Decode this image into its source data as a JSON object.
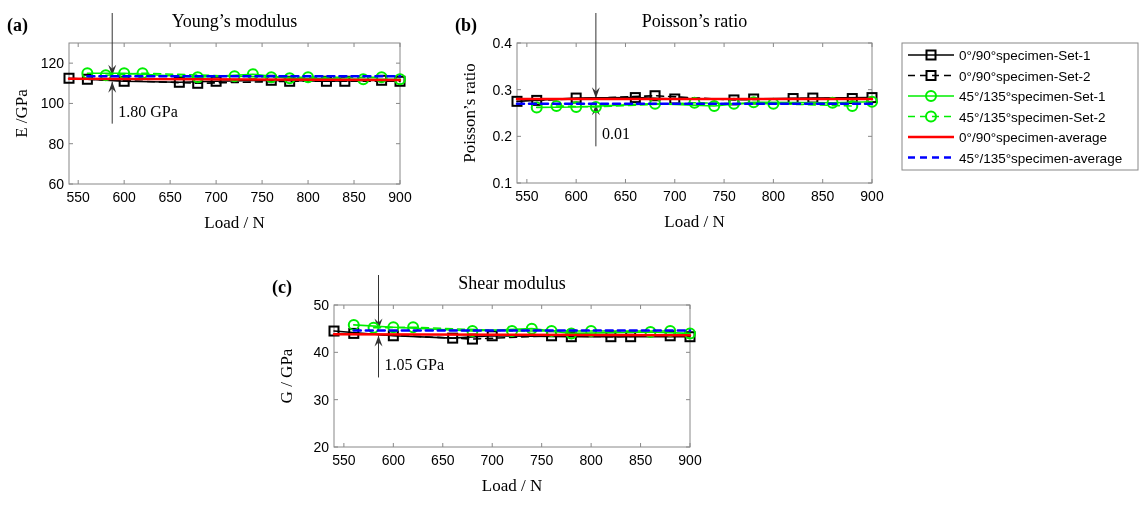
{
  "chart_data": [
    {
      "type": "line",
      "title": "Young’s modulus",
      "xlabel": "Load / N",
      "ylabel": "E /GPa",
      "xlim": [
        540,
        900
      ],
      "ylim": [
        60,
        130
      ],
      "xticks": [
        550,
        600,
        650,
        700,
        750,
        800,
        850,
        900
      ],
      "yticks": [
        60,
        80,
        100,
        120
      ],
      "grid": false,
      "legend": false,
      "annotations": [
        "(a)",
        {
          "text": "1.80 GPa",
          "x": 587,
          "y": 112.3
        }
      ],
      "series": [
        {
          "color": "#000000",
          "marker": "square",
          "line_style": "solid",
          "x": [
            540,
            600,
            660,
            700,
            760,
            820,
            880
          ],
          "values": [
            112.5,
            111,
            110.5,
            111,
            111.5,
            111,
            111.5
          ]
        },
        {
          "color": "#000000",
          "marker": "square",
          "line_style": "dashed",
          "x": [
            560,
            680,
            780,
            840,
            900
          ],
          "values": [
            112,
            110,
            111,
            111,
            111
          ]
        },
        {
          "color": "#00ee00",
          "marker": "circle",
          "line_style": "solid",
          "x": [
            560,
            600,
            680,
            740,
            780,
            860,
            900
          ],
          "values": [
            115,
            115,
            113,
            114.5,
            112.5,
            112,
            112
          ]
        },
        {
          "color": "#00ee00",
          "marker": "circle",
          "line_style": "dashed",
          "x": [
            580,
            620,
            720,
            760,
            800,
            880
          ],
          "values": [
            114,
            115,
            113.5,
            113,
            113,
            113
          ]
        },
        {
          "color": "#ff0000",
          "marker": "none",
          "line_style": "solid",
          "x": [
            540,
            900
          ],
          "values": [
            112.2,
            111.6
          ]
        },
        {
          "color": "#0000ff",
          "marker": "none",
          "line_style": "dashed",
          "x": [
            560,
            900
          ],
          "values": [
            113.5,
            113.5
          ]
        }
      ]
    },
    {
      "type": "line",
      "title": "Poisson’s ratio",
      "xlabel": "Load / N",
      "ylabel": "Poisson’s ratio",
      "xlim": [
        540,
        900
      ],
      "ylim": [
        0.1,
        0.4
      ],
      "xticks": [
        550,
        600,
        650,
        700,
        750,
        800,
        850,
        900
      ],
      "yticks": [
        0.1,
        0.2,
        0.3,
        0.4
      ],
      "grid": false,
      "legend": "right",
      "annotations": [
        "(b)",
        {
          "text": "0.01",
          "x": 620,
          "y": 0.275
        }
      ],
      "series": [
        {
          "name": "0°/90°specimen-Set-1",
          "color": "#000000",
          "marker": "square",
          "line_style": "solid",
          "x": [
            540,
            600,
            660,
            700,
            780,
            840,
            900
          ],
          "values": [
            0.275,
            0.282,
            0.283,
            0.28,
            0.28,
            0.282,
            0.283
          ]
        },
        {
          "name": "0°/90°specimen-Set-2",
          "color": "#000000",
          "marker": "square",
          "line_style": "dashed",
          "x": [
            560,
            680,
            760,
            820,
            880
          ],
          "values": [
            0.277,
            0.287,
            0.278,
            0.281,
            0.281
          ]
        },
        {
          "name": "45°/135°specimen-Set-1",
          "color": "#00ee00",
          "marker": "circle",
          "line_style": "solid",
          "x": [
            560,
            600,
            680,
            740,
            780,
            860,
            900
          ],
          "values": [
            0.262,
            0.263,
            0.27,
            0.265,
            0.273,
            0.272,
            0.274
          ]
        },
        {
          "name": "45°/135°specimen-Set-2",
          "color": "#00ee00",
          "marker": "circle",
          "line_style": "dashed",
          "x": [
            580,
            620,
            720,
            760,
            800,
            880
          ],
          "values": [
            0.265,
            0.263,
            0.272,
            0.27,
            0.27,
            0.265
          ]
        },
        {
          "name": "0°/90°specimen-average",
          "color": "#ff0000",
          "marker": "none",
          "line_style": "solid",
          "x": [
            540,
            900
          ],
          "values": [
            0.28,
            0.28
          ]
        },
        {
          "name": "45°/135°specimen-average",
          "color": "#0000ff",
          "marker": "none",
          "line_style": "dashed",
          "x": [
            540,
            900
          ],
          "values": [
            0.27,
            0.27
          ]
        }
      ]
    },
    {
      "type": "line",
      "title": "Shear modulus",
      "xlabel": "Load / N",
      "ylabel": "G / GPa",
      "xlim": [
        540,
        900
      ],
      "ylim": [
        20,
        50
      ],
      "xticks": [
        550,
        600,
        650,
        700,
        750,
        800,
        850,
        900
      ],
      "yticks": [
        20,
        30,
        40,
        50
      ],
      "grid": false,
      "legend": false,
      "annotations": [
        "(c)",
        {
          "text": "1.05 GPa",
          "x": 585,
          "y": 44.2
        }
      ],
      "series": [
        {
          "color": "#000000",
          "marker": "square",
          "line_style": "solid",
          "x": [
            540,
            600,
            660,
            700,
            780,
            840,
            900
          ],
          "values": [
            44.5,
            43.5,
            43,
            43.5,
            43.3,
            43.3,
            43.3
          ]
        },
        {
          "color": "#000000",
          "marker": "square",
          "line_style": "dashed",
          "x": [
            560,
            680,
            760,
            820,
            880
          ],
          "values": [
            44,
            42.8,
            43.5,
            43.3,
            43.5
          ]
        },
        {
          "color": "#00ee00",
          "marker": "circle",
          "line_style": "solid",
          "x": [
            560,
            600,
            680,
            740,
            780,
            860,
            900
          ],
          "values": [
            45.8,
            45.3,
            44.5,
            45,
            44,
            44.3,
            44
          ]
        },
        {
          "color": "#00ee00",
          "marker": "circle",
          "line_style": "dashed",
          "x": [
            580,
            620,
            720,
            760,
            800,
            880
          ],
          "values": [
            45.2,
            45.3,
            44.5,
            44.5,
            44.5,
            44.5
          ]
        },
        {
          "color": "#ff0000",
          "marker": "none",
          "line_style": "solid",
          "x": [
            540,
            900
          ],
          "values": [
            43.8,
            43.6
          ]
        },
        {
          "color": "#0000ff",
          "marker": "none",
          "line_style": "dashed",
          "x": [
            560,
            900
          ],
          "values": [
            44.6,
            44.6
          ]
        }
      ]
    }
  ]
}
